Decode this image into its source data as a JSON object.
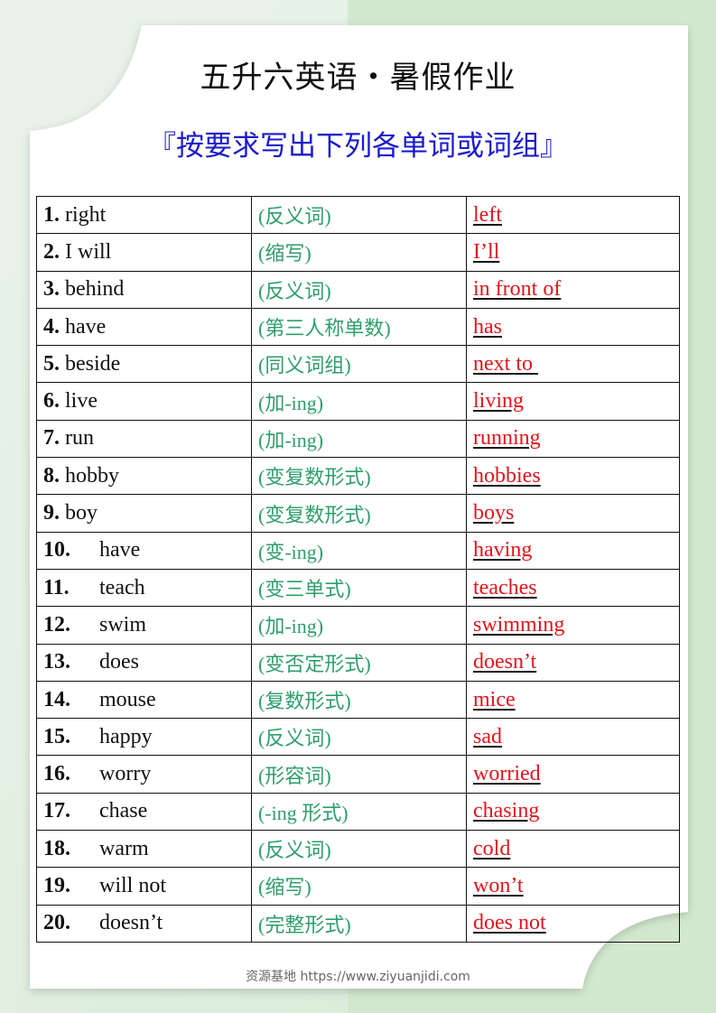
{
  "header": {
    "title": "五升六英语・暑假作业",
    "subtitle": "『按要求写出下列各单词或词组』"
  },
  "rows": [
    {
      "num": "1.",
      "word": "right",
      "hint": "(反义词)",
      "answer": "left"
    },
    {
      "num": "2.",
      "word": "I will",
      "hint": "(缩写)",
      "answer": "I’ll"
    },
    {
      "num": "3.",
      "word": "behind",
      "hint": "(反义词)",
      "answer": "in front of"
    },
    {
      "num": "4.",
      "word": "have",
      "hint": "(第三人称单数)",
      "answer": "has"
    },
    {
      "num": "5.",
      "word": "beside",
      "hint": "(同义词组)",
      "answer": "next to "
    },
    {
      "num": "6.",
      "word": "live",
      "hint": "(加-ing)",
      "answer": "living"
    },
    {
      "num": "7.",
      "word": "run",
      "hint": "(加-ing)",
      "answer": "running"
    },
    {
      "num": "8.",
      "word": "hobby",
      "hint": "(变复数形式)",
      "answer": "hobbies"
    },
    {
      "num": "9.",
      "word": "boy",
      "hint": "(变复数形式)",
      "answer": "boys"
    },
    {
      "num": "10.",
      "word": "have",
      "hint": "(变-ing)",
      "answer": "having"
    },
    {
      "num": "11.",
      "word": "teach",
      "hint": "(变三单式)",
      "answer": "teaches"
    },
    {
      "num": "12.",
      "word": "swim",
      "hint": "(加-ing)",
      "answer": "swimming"
    },
    {
      "num": "13.",
      "word": "does",
      "hint": "(变否定形式)",
      "answer": "doesn’t"
    },
    {
      "num": "14.",
      "word": "mouse",
      "hint": "(复数形式)",
      "answer": "mice"
    },
    {
      "num": "15.",
      "word": "happy",
      "hint": "(反义词)",
      "answer": "sad"
    },
    {
      "num": "16.",
      "word": "worry",
      "hint": "(形容词)",
      "answer": "worried"
    },
    {
      "num": "17.",
      "word": "chase",
      "hint": "(-ing 形式)",
      "answer": "chasing"
    },
    {
      "num": "18.",
      "word": "warm",
      "hint": "(反义词)",
      "answer": "cold"
    },
    {
      "num": "19.",
      "word": "will not",
      "hint": "(缩写)",
      "answer": "won’t"
    },
    {
      "num": "20.",
      "word": "doesn’t",
      "hint": "(完整形式)",
      "answer": "does not"
    }
  ],
  "footer": {
    "text": "资源基地 https://www.ziyuanjidi.com"
  },
  "colors": {
    "title": "#111111",
    "subtitle": "#1a1acc",
    "hint": "#2e9e6a",
    "answer": "#e0151c"
  }
}
